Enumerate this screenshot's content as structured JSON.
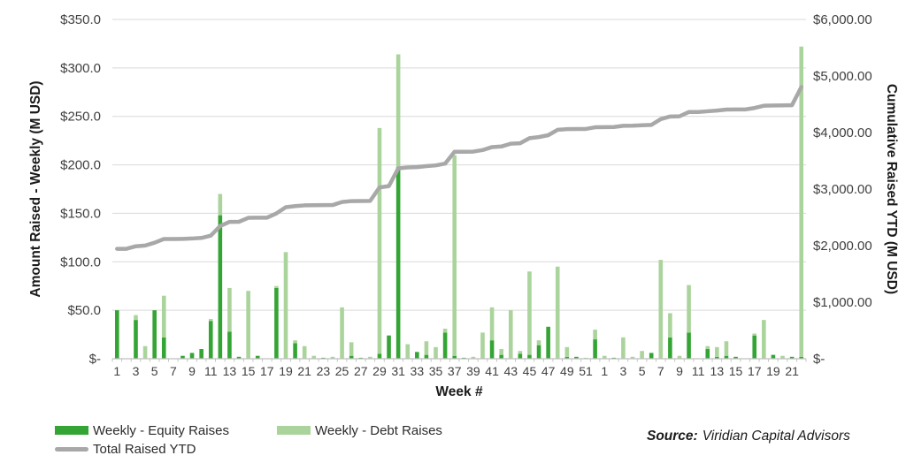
{
  "chart_data": {
    "type": "bar",
    "subtype": "stacked-bars-with-line-combo",
    "title": "",
    "xlabel": "Week #",
    "grid": true,
    "legend_position": "bottom-left",
    "x_axis": {
      "label": "Week #",
      "tick_every": 2,
      "categories": [
        1,
        2,
        3,
        4,
        5,
        6,
        7,
        8,
        9,
        10,
        11,
        12,
        13,
        14,
        15,
        16,
        17,
        18,
        19,
        20,
        21,
        22,
        23,
        24,
        25,
        26,
        27,
        28,
        29,
        30,
        31,
        32,
        33,
        34,
        35,
        36,
        37,
        38,
        39,
        40,
        41,
        42,
        43,
        44,
        45,
        46,
        47,
        48,
        49,
        50,
        51,
        52,
        1,
        2,
        3,
        4,
        5,
        6,
        7,
        8,
        9,
        10,
        11,
        12,
        13,
        14,
        15,
        16,
        17,
        18,
        19,
        20,
        21,
        22
      ]
    },
    "y_left": {
      "label": "Amount Raised - Weekly (M USD)",
      "min": 0,
      "max": 350,
      "step": 50,
      "tick_labels": [
        "$-",
        "$50.0",
        "$100.0",
        "$150.0",
        "$200.0",
        "$250.0",
        "$300.0",
        "$350.0"
      ]
    },
    "y_right": {
      "label": "Cumulative Raised YTD (M USD)",
      "min": 0,
      "max": 6000,
      "step": 1000,
      "tick_labels": [
        "$-",
        "$1,000.00",
        "$2,000.00",
        "$3,000.00",
        "$4,000.00",
        "$5,000.00",
        "$6,000.00"
      ]
    },
    "series": [
      {
        "name": "Weekly - Equity Raises",
        "type": "bar",
        "stack": "raises",
        "axis": "left",
        "color": "#34a534",
        "values": [
          50,
          0,
          40,
          0,
          50,
          22,
          0,
          3,
          6,
          10,
          39,
          148,
          28,
          2,
          0,
          3,
          0,
          73,
          0,
          16,
          0,
          0,
          1,
          0,
          0,
          3,
          1,
          0,
          5,
          24,
          198,
          0,
          7,
          4,
          0,
          27,
          3,
          1,
          0,
          0,
          19,
          4,
          0,
          5,
          4,
          14,
          33,
          0,
          2,
          2,
          0,
          20,
          0,
          1,
          0,
          0,
          0,
          6,
          0,
          22,
          0,
          27,
          0,
          10,
          2,
          3,
          2,
          0,
          24,
          0,
          4,
          0,
          2,
          2
        ]
      },
      {
        "name": "Weekly - Debt Raises",
        "type": "bar",
        "stack": "raises",
        "axis": "left",
        "color": "#abd49c",
        "values": [
          0,
          0,
          5,
          13,
          0,
          43,
          0,
          0,
          0,
          0,
          2,
          22,
          45,
          0,
          70,
          0,
          0,
          2,
          110,
          3,
          13,
          3,
          0,
          2,
          53,
          14,
          0,
          2,
          233,
          0,
          116,
          15,
          0,
          14,
          12,
          4,
          207,
          0,
          2,
          27,
          34,
          6,
          50,
          3,
          86,
          5,
          0,
          95,
          10,
          0,
          1,
          10,
          3,
          0,
          22,
          2,
          8,
          0,
          102,
          25,
          3,
          49,
          0,
          3,
          10,
          15,
          0,
          0,
          2,
          40,
          0,
          3,
          0,
          320
        ]
      },
      {
        "name": "Total Raised YTD",
        "type": "line",
        "axis": "right",
        "color": "#a8a8a8",
        "values": [
          1944,
          1944,
          1989,
          2002,
          2052,
          2117,
          2117,
          2120,
          2126,
          2136,
          2177,
          2347,
          2420,
          2422,
          2492,
          2495,
          2495,
          2570,
          2680,
          2699,
          2712,
          2715,
          2716,
          2718,
          2771,
          2788,
          2789,
          2791,
          3029,
          3053,
          3367,
          3382,
          3389,
          3407,
          3419,
          3450,
          3660,
          3661,
          3663,
          3690,
          3743,
          3753,
          3803,
          3811,
          3901,
          3920,
          3953,
          4048,
          4060,
          4062,
          4063,
          4093,
          4096,
          4097,
          4119,
          4121,
          4129,
          4135,
          4237,
          4284,
          4287,
          4363,
          4363,
          4376,
          4388,
          4406,
          4408,
          4408,
          4434,
          4474,
          4478,
          4481,
          4483,
          4805
        ]
      }
    ]
  },
  "source": {
    "label": "Source:",
    "text": "Viridian Capital Advisors"
  },
  "colors": {
    "grid": "#d9d9d9",
    "axis": "#bfbfbf",
    "tick_text": "#3f3f3f",
    "axis_title": "#1a1a1a"
  }
}
